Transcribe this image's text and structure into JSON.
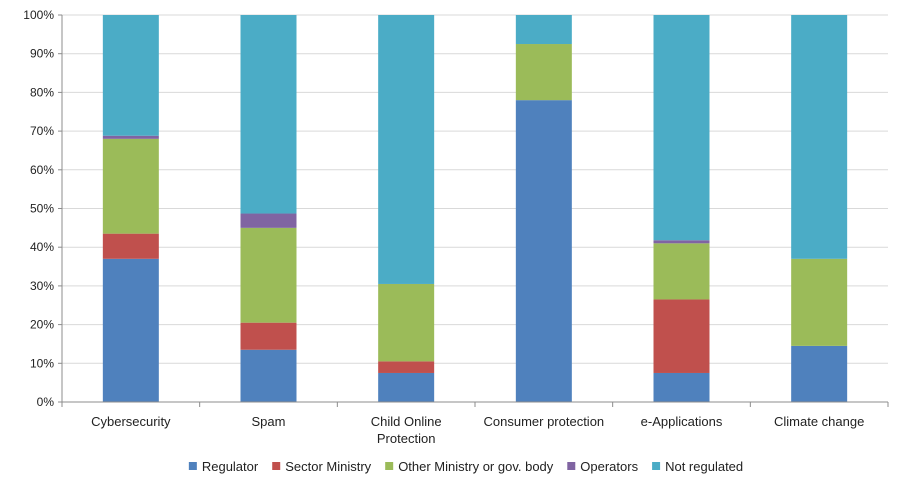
{
  "chart_data": {
    "type": "bar",
    "stacked": true,
    "percent_stacked": true,
    "categories": [
      "Cybersecurity",
      "Spam",
      "Child Online Protection",
      "Consumer protection",
      "e-Applications",
      "Climate change"
    ],
    "category_lines": [
      [
        "Cybersecurity"
      ],
      [
        "Spam"
      ],
      [
        "Child Online",
        "Protection"
      ],
      [
        "Consumer protection"
      ],
      [
        "e-Applications"
      ],
      [
        "Climate change"
      ]
    ],
    "series": [
      {
        "name": "Regulator",
        "color": "#4F81BD",
        "values": [
          37,
          13.5,
          7.5,
          78,
          7.5,
          14.5
        ]
      },
      {
        "name": "Sector Ministry",
        "color": "#C0504D",
        "values": [
          6.5,
          7,
          3,
          0,
          19,
          0
        ]
      },
      {
        "name": "Other Ministry or gov. body",
        "color": "#9BBB59",
        "values": [
          24.5,
          24.5,
          20,
          14.5,
          14.5,
          22.5
        ]
      },
      {
        "name": "Operators",
        "color": "#8064A2",
        "values": [
          0.8,
          3.7,
          0,
          0,
          0.8,
          0
        ]
      },
      {
        "name": "Not regulated",
        "color": "#4BACC6",
        "values": [
          31.2,
          51.3,
          69.5,
          7.5,
          58.2,
          63
        ]
      }
    ],
    "y_ticks": [
      "0%",
      "10%",
      "20%",
      "30%",
      "40%",
      "50%",
      "60%",
      "70%",
      "80%",
      "90%",
      "100%"
    ],
    "ylim": [
      0,
      100
    ],
    "title": "",
    "xlabel": "",
    "ylabel": "",
    "grid": true,
    "legend_position": "bottom"
  }
}
